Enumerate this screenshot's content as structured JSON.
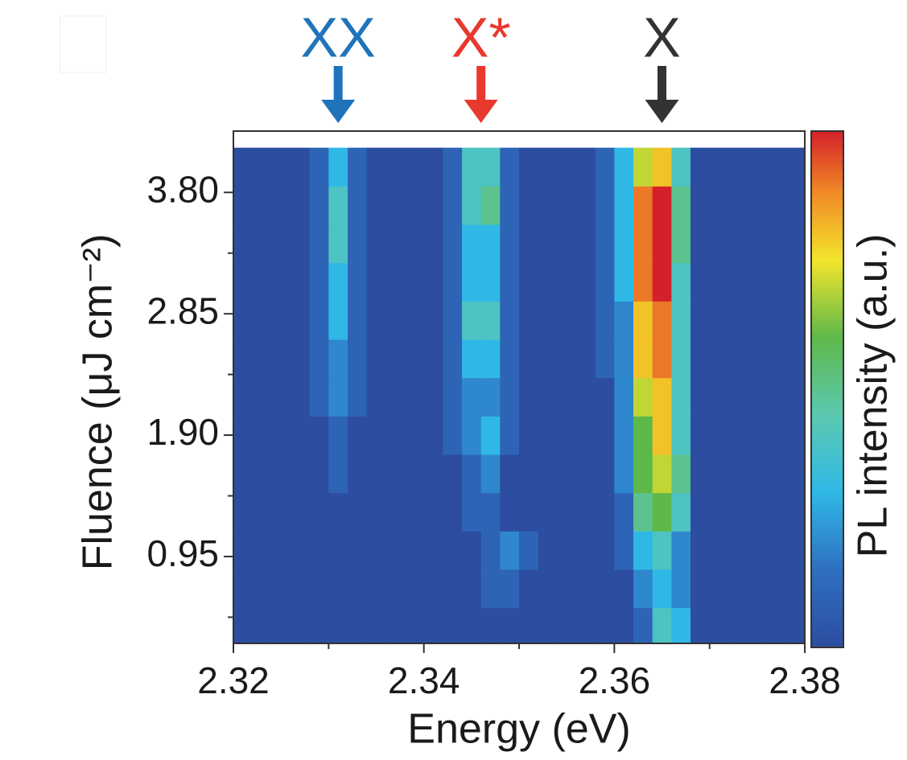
{
  "chart_data": {
    "type": "heatmap",
    "xlabel": "Energy (eV)",
    "ylabel": "Fluence (μJ cm⁻²)",
    "colorbar_label": "PL intensity (a.u.)",
    "xlim": [
      2.32,
      2.38
    ],
    "xticks": [
      2.32,
      2.34,
      2.36,
      2.38
    ],
    "xminorticks": [
      2.33,
      2.35,
      2.37
    ],
    "ylim": [
      0.27,
      4.28
    ],
    "yticks": [
      0.95,
      {
        "value": 1.9,
        "label": "1.90"
      },
      2.85,
      {
        "value": 3.8,
        "label": "3.80"
      }
    ],
    "yminorticks": [
      0.475,
      1.425,
      2.375,
      3.325
    ],
    "zlim": [
      0,
      10
    ],
    "annotations": [
      {
        "text": "XX",
        "x": 2.331,
        "color": "#1f73bb"
      },
      {
        "text": "X*",
        "x": 2.346,
        "color": "#e8392f"
      },
      {
        "text": "X",
        "x": 2.365,
        "color": "#333333"
      }
    ],
    "x": [
      2.321,
      2.323,
      2.325,
      2.327,
      2.329,
      2.331,
      2.333,
      2.335,
      2.337,
      2.339,
      2.341,
      2.343,
      2.345,
      2.347,
      2.349,
      2.351,
      2.353,
      2.355,
      2.357,
      2.359,
      2.361,
      2.363,
      2.365,
      2.367,
      2.369,
      2.371,
      2.373,
      2.375,
      2.377,
      2.379
    ],
    "y": [
      0.4,
      0.7,
      1.0,
      1.3,
      1.6,
      1.9,
      2.2,
      2.5,
      2.8,
      3.1,
      3.4,
      3.7,
      4.0
    ],
    "z": [
      [
        0,
        0,
        0,
        0,
        0,
        0,
        0,
        0,
        0,
        0,
        0,
        0,
        0,
        0,
        0,
        0,
        0,
        0,
        0,
        0,
        0,
        1,
        4,
        3,
        0,
        0,
        0,
        0,
        0,
        0
      ],
      [
        0,
        0,
        0,
        0,
        0,
        0,
        0,
        0,
        0,
        0,
        0,
        0,
        0,
        1,
        1,
        0,
        0,
        0,
        0,
        0,
        0,
        2,
        3,
        2,
        0,
        0,
        0,
        0,
        0,
        0
      ],
      [
        0,
        0,
        0,
        0,
        0,
        0,
        0,
        0,
        0,
        0,
        0,
        0,
        0,
        1,
        2,
        1,
        0,
        0,
        0,
        0,
        1,
        3,
        4,
        2,
        0,
        0,
        0,
        0,
        0,
        0
      ],
      [
        0,
        0,
        0,
        0,
        0,
        0,
        0,
        0,
        0,
        0,
        0,
        0,
        1,
        1,
        0,
        0,
        0,
        0,
        0,
        0,
        1,
        5,
        6,
        4,
        0,
        0,
        0,
        0,
        0,
        0
      ],
      [
        0,
        0,
        0,
        0,
        0,
        1,
        0,
        0,
        0,
        0,
        0,
        0,
        1,
        2,
        0,
        0,
        0,
        0,
        0,
        0,
        2,
        6,
        7,
        5,
        0,
        0,
        0,
        0,
        0,
        0
      ],
      [
        0,
        0,
        0,
        0,
        0,
        1,
        0,
        0,
        0,
        0,
        0,
        1,
        2,
        3,
        1,
        0,
        0,
        0,
        0,
        0,
        2,
        6,
        8,
        4,
        0,
        0,
        0,
        0,
        0,
        0
      ],
      [
        0,
        0,
        0,
        0,
        1,
        2,
        1,
        0,
        0,
        0,
        0,
        1,
        2,
        2,
        1,
        0,
        0,
        0,
        0,
        0,
        2,
        7,
        8,
        4,
        0,
        0,
        0,
        0,
        0,
        0
      ],
      [
        0,
        0,
        0,
        0,
        1,
        2,
        1,
        0,
        0,
        0,
        0,
        1,
        3,
        3,
        1,
        0,
        0,
        0,
        0,
        1,
        2,
        8,
        9,
        4,
        0,
        0,
        0,
        0,
        0,
        0
      ],
      [
        0,
        0,
        0,
        0,
        1,
        3,
        1,
        0,
        0,
        0,
        0,
        1,
        4,
        4,
        1,
        0,
        0,
        0,
        0,
        1,
        2,
        8,
        9,
        4,
        0,
        0,
        0,
        0,
        0,
        0
      ],
      [
        0,
        0,
        0,
        0,
        1,
        3,
        1,
        0,
        0,
        0,
        0,
        1,
        3,
        3,
        1,
        0,
        0,
        0,
        0,
        1,
        3,
        9,
        10,
        4,
        0,
        0,
        0,
        0,
        0,
        0
      ],
      [
        0,
        0,
        0,
        0,
        1,
        4,
        1,
        0,
        0,
        0,
        0,
        1,
        3,
        3,
        1,
        0,
        0,
        0,
        0,
        1,
        3,
        9,
        10,
        5,
        0,
        0,
        0,
        0,
        0,
        0
      ],
      [
        0,
        0,
        0,
        0,
        1,
        4,
        1,
        0,
        0,
        0,
        0,
        1,
        4,
        5,
        1,
        0,
        0,
        0,
        0,
        1,
        3,
        9,
        10,
        5,
        0,
        0,
        0,
        0,
        0,
        0
      ],
      [
        0,
        0,
        0,
        0,
        1,
        3,
        1,
        0,
        0,
        0,
        0,
        1,
        4,
        4,
        1,
        0,
        0,
        0,
        0,
        1,
        3,
        7,
        8,
        4,
        0,
        0,
        0,
        0,
        0,
        0
      ]
    ]
  }
}
